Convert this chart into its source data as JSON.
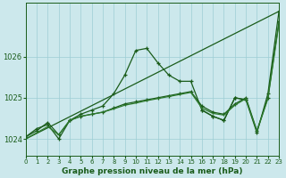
{
  "xlabel": "Graphe pression niveau de la mer (hPa)",
  "xlim": [
    0,
    23
  ],
  "ylim": [
    1023.6,
    1027.3
  ],
  "yticks": [
    1024,
    1025,
    1026
  ],
  "xticks": [
    0,
    1,
    2,
    3,
    4,
    5,
    6,
    7,
    8,
    9,
    10,
    11,
    12,
    13,
    14,
    15,
    16,
    17,
    18,
    19,
    20,
    21,
    22,
    23
  ],
  "bg_color": "#cce8ec",
  "grid_color": "#9ecdd4",
  "line_color": "#1a5c1a",
  "line_color2": "#2d7a2d",
  "line1": [
    1024.05,
    1024.25,
    1024.35,
    1024.0,
    1024.45,
    1024.6,
    1024.7,
    1024.8,
    1025.1,
    1025.55,
    1026.15,
    1026.2,
    1025.85,
    1025.55,
    1025.4,
    1025.4,
    1024.7,
    1024.55,
    1024.45,
    1025.0,
    1024.95,
    null,
    null,
    null
  ],
  "line2": [
    null,
    null,
    null,
    null,
    null,
    null,
    null,
    null,
    null,
    null,
    null,
    null,
    null,
    null,
    null,
    null,
    1024.7,
    1024.55,
    1024.45,
    null,
    null,
    1024.15,
    1025.1,
    1027.1
  ],
  "line3": [
    1024.05,
    1024.2,
    1024.4,
    1024.1,
    1024.45,
    1024.55,
    1024.6,
    1024.65,
    1024.75,
    1024.85,
    1024.9,
    1024.95,
    1025.0,
    1025.05,
    1025.1,
    1025.15,
    1024.8,
    1024.65,
    1024.6,
    1024.85,
    1025.0,
    1024.2,
    1025.0,
    1026.85
  ],
  "line4": [
    1024.0,
    1024.15,
    1024.3,
    1024.1,
    1024.45,
    1024.55,
    1024.6,
    1024.65,
    1024.73,
    1024.82,
    1024.87,
    1024.93,
    1024.98,
    1025.03,
    1025.08,
    1025.13,
    1024.75,
    1024.62,
    1024.58,
    1024.82,
    1024.98,
    1024.18,
    1024.98,
    1026.8
  ],
  "line5_x": [
    0,
    23
  ],
  "line5_y": [
    1024.0,
    1027.1
  ]
}
